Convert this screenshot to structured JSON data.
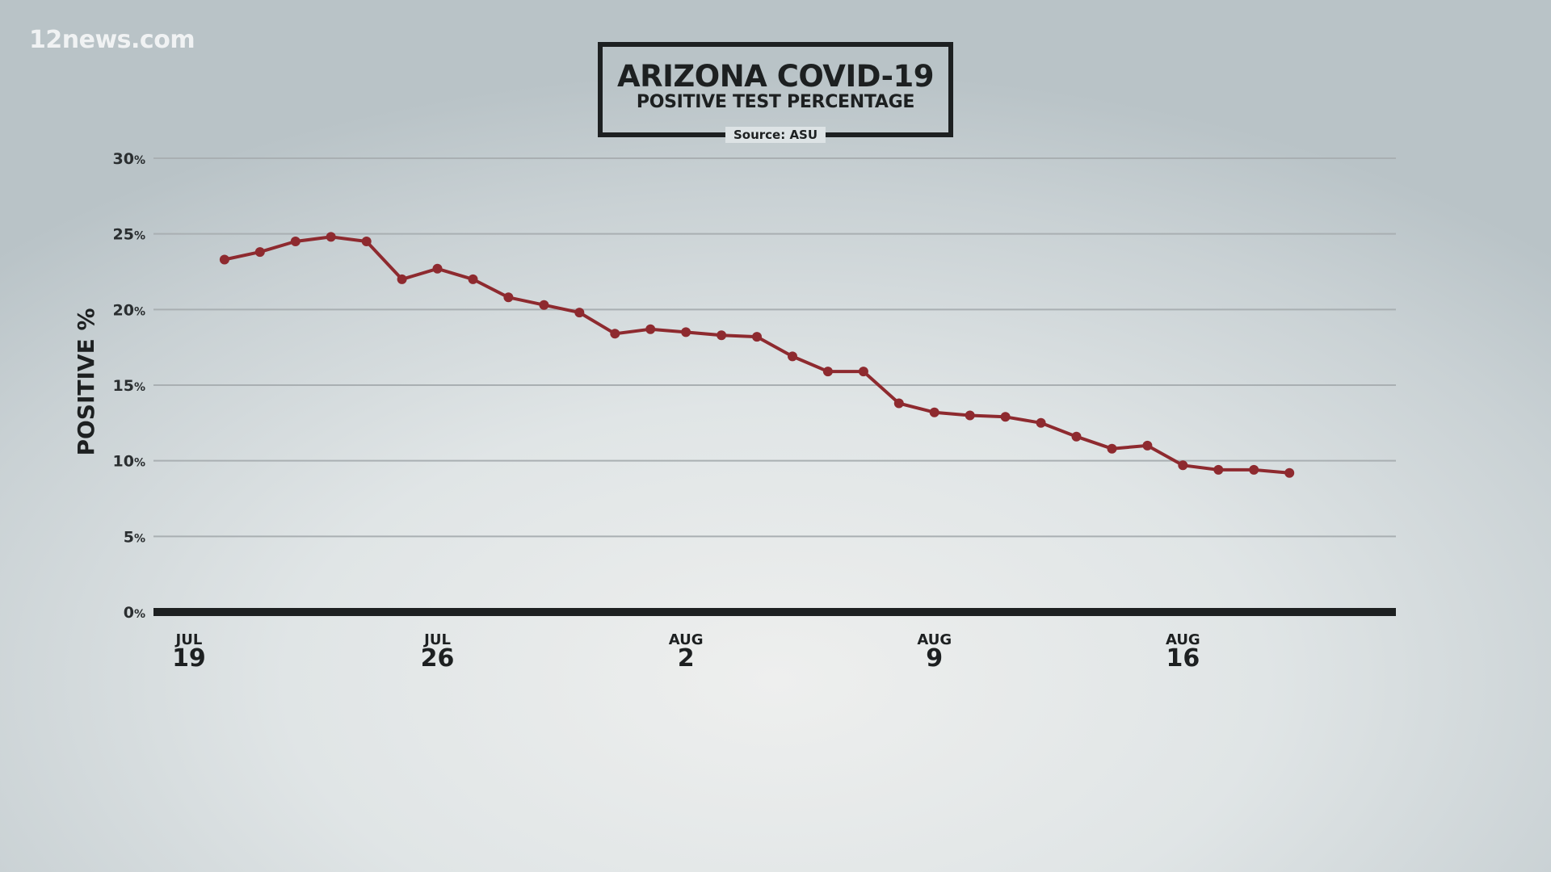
{
  "watermark": "12news.com",
  "chart_data": {
    "type": "line",
    "title": "ARIZONA COVID-19",
    "subtitle": "POSITIVE TEST PERCENTAGE",
    "source": "Source: ASU",
    "xlabel": "",
    "ylabel": "POSITIVE %",
    "ylim": [
      0,
      30
    ],
    "yticks": [
      0,
      5,
      10,
      15,
      20,
      25,
      30
    ],
    "ytick_unit": "%",
    "grid": true,
    "xlim": [
      "2020-07-18",
      "2020-08-22"
    ],
    "xticks": [
      {
        "date": "2020-07-19",
        "month": "JUL",
        "day": "19"
      },
      {
        "date": "2020-07-26",
        "month": "JUL",
        "day": "26"
      },
      {
        "date": "2020-08-02",
        "month": "AUG",
        "day": "2"
      },
      {
        "date": "2020-08-09",
        "month": "AUG",
        "day": "9"
      },
      {
        "date": "2020-08-16",
        "month": "AUG",
        "day": "16"
      }
    ],
    "line_color": "#8e2a2f",
    "series": [
      {
        "x": [
          "2020-07-20",
          "2020-07-21",
          "2020-07-22",
          "2020-07-23",
          "2020-07-24",
          "2020-07-25",
          "2020-07-26",
          "2020-07-27",
          "2020-07-28",
          "2020-07-29",
          "2020-07-30",
          "2020-07-31",
          "2020-08-01",
          "2020-08-02",
          "2020-08-03",
          "2020-08-04",
          "2020-08-05",
          "2020-08-06",
          "2020-08-07",
          "2020-08-08",
          "2020-08-09",
          "2020-08-10",
          "2020-08-11",
          "2020-08-12",
          "2020-08-13",
          "2020-08-14",
          "2020-08-15",
          "2020-08-16",
          "2020-08-17",
          "2020-08-18",
          "2020-08-19"
        ],
        "values": [
          23.3,
          23.8,
          24.5,
          24.8,
          24.5,
          22.0,
          22.7,
          22.0,
          20.8,
          20.3,
          19.8,
          18.4,
          18.7,
          18.5,
          18.3,
          18.2,
          16.9,
          15.9,
          15.9,
          13.8,
          13.2,
          13.0,
          12.9,
          12.5,
          11.6,
          10.8,
          11.0,
          9.7,
          9.4,
          9.4,
          9.2
        ]
      }
    ]
  }
}
